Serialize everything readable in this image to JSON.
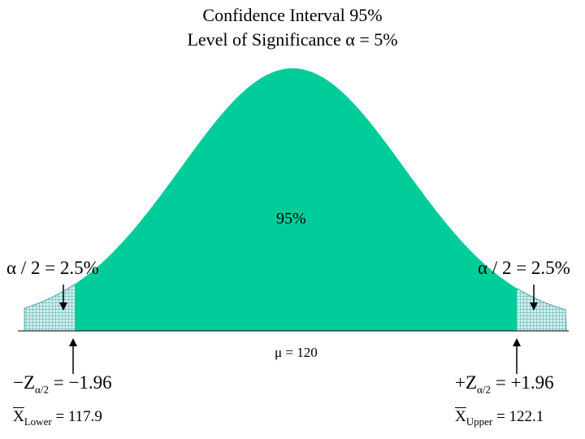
{
  "title": {
    "line1": "Confidence Interval   95%",
    "line2": "Level of Significance  α = 5%"
  },
  "center_label": "95%",
  "tails": {
    "left_alpha": "α / 2 = 2.5%",
    "right_alpha": "α / 2 = 2.5%"
  },
  "mean_label": "μ = 120",
  "z_values": {
    "left": {
      "sign": "−Z",
      "subscript": "α/2",
      "value": " = −1.96"
    },
    "right": {
      "sign": "+Z",
      "subscript": "α/2",
      "value": " = +1.96"
    }
  },
  "bounds": {
    "lower": {
      "symbol": "X",
      "subscript": "Lower",
      "value": " = 117.9"
    },
    "upper": {
      "symbol": "X",
      "subscript": "Upper",
      "value": " = 122.1"
    }
  },
  "colors": {
    "curve_fill": "#00CC99",
    "tail_fill": "#CFEFF0",
    "tail_grid": "#2E8F8F"
  }
}
